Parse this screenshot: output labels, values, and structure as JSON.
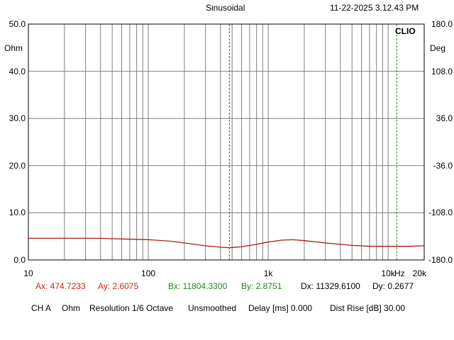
{
  "header": {
    "mode": "Sinusoidal",
    "datetime": "11-22-2025 3.12.43 PM"
  },
  "brand": "CLIO",
  "units": {
    "left": "Ohm",
    "right": "Deg",
    "freq": "Hz"
  },
  "cursor_readout": {
    "ax": "Ax: 474.7233",
    "ay": "Ay: 2.6075",
    "bx": "Bx: 11804.3300",
    "by": "By: 2.8751",
    "dx": "Dx: 11329.6100",
    "dy": "Dy: 0.2677"
  },
  "status_bar": {
    "channel": "CH A",
    "unit": "Ohm",
    "resolution": "Resolution 1/6 Octave",
    "smoothing": "Unsmoothed",
    "delay": "Delay [ms] 0.000",
    "dist_rise": "Dist Rise [dB] 30.00"
  },
  "colors": {
    "curve": "#b01818",
    "cursor_a": "#cc2222",
    "cursor_b": "#228822",
    "grid": "#808080"
  },
  "chart_data": {
    "type": "line",
    "xscale": "log",
    "xlim": [
      10,
      20000
    ],
    "ylim": [
      0,
      50
    ],
    "y2lim": [
      -180,
      180
    ],
    "grid": true,
    "x_tick_labels": [
      {
        "value": 10,
        "label": "10"
      },
      {
        "value": 100,
        "label": "100"
      },
      {
        "value": 1000,
        "label": "1k"
      },
      {
        "value": 10000,
        "label": "10k"
      },
      {
        "value": 20000,
        "label": "20k"
      }
    ],
    "y_tick_labels": [
      {
        "value": 0,
        "label": "0.0"
      },
      {
        "value": 10,
        "label": "10.0"
      },
      {
        "value": 20,
        "label": "20.0"
      },
      {
        "value": 30,
        "label": "30.0"
      },
      {
        "value": 40,
        "label": "40.0"
      },
      {
        "value": 50,
        "label": "50.0"
      }
    ],
    "y2_tick_labels": [
      {
        "value": -180,
        "label": "-180.0"
      },
      {
        "value": -108,
        "label": "-108.0"
      },
      {
        "value": -36,
        "label": "-36.0"
      },
      {
        "value": 36,
        "label": "36.0"
      },
      {
        "value": 108,
        "label": "108.0"
      },
      {
        "value": 180,
        "label": "180.0"
      }
    ],
    "cursors": [
      {
        "name": "A",
        "x": 474.7233,
        "y": 2.6075
      },
      {
        "name": "B",
        "x": 11804.33,
        "y": 2.8751
      }
    ],
    "series": [
      {
        "x": [
          10,
          20,
          30,
          40,
          50,
          70,
          100,
          150,
          200,
          300,
          400,
          474.7,
          600,
          800,
          1000,
          1300,
          1600,
          2000,
          3000,
          4000,
          5000,
          7000,
          10000,
          12000,
          15000,
          20000
        ],
        "values": [
          4.6,
          4.6,
          4.6,
          4.6,
          4.5,
          4.4,
          4.3,
          4.0,
          3.6,
          3.0,
          2.7,
          2.6,
          2.8,
          3.3,
          3.8,
          4.2,
          4.3,
          4.1,
          3.6,
          3.3,
          3.1,
          2.9,
          2.9,
          2.9,
          2.9,
          3.0
        ]
      }
    ]
  }
}
